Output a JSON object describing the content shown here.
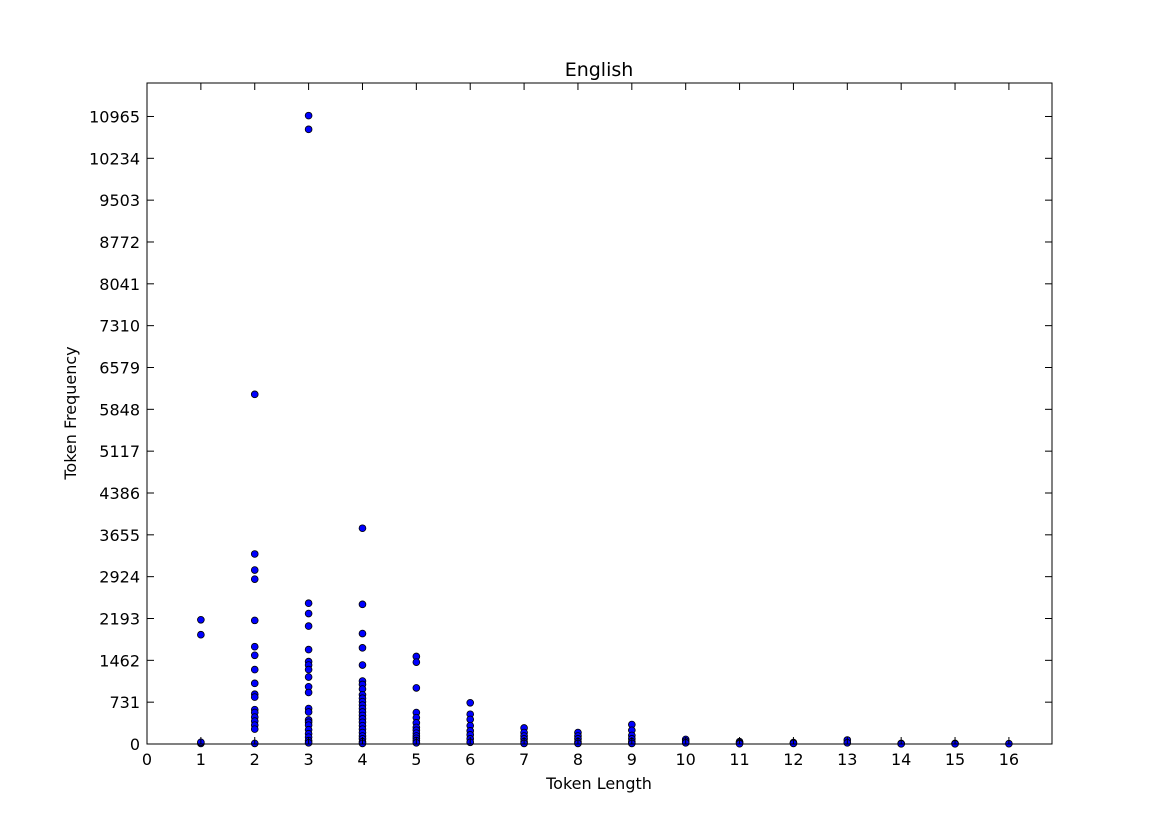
{
  "chart_data": {
    "type": "scatter",
    "title": "English",
    "xlabel": "Token Length",
    "ylabel": "Token Frequency",
    "xlim": [
      0,
      16.8
    ],
    "ylim": [
      0,
      11550
    ],
    "xticks": [
      "0",
      "1",
      "2",
      "3",
      "4",
      "5",
      "6",
      "7",
      "8",
      "9",
      "10",
      "11",
      "12",
      "13",
      "14",
      "15",
      "16"
    ],
    "yticks": [
      "0",
      "731",
      "1462",
      "2193",
      "2924",
      "3655",
      "4386",
      "5117",
      "5848",
      "6579",
      "7310",
      "8041",
      "8772",
      "9503",
      "10234",
      "10965"
    ],
    "marker_color": "#0000ff",
    "grid": false,
    "legend": "none",
    "series": [
      {
        "points": [
          [
            1,
            2170
          ],
          [
            1,
            1910
          ],
          [
            1,
            10
          ],
          [
            1,
            30
          ],
          [
            2,
            6110
          ],
          [
            2,
            3320
          ],
          [
            2,
            3040
          ],
          [
            2,
            2880
          ],
          [
            2,
            2160
          ],
          [
            2,
            1700
          ],
          [
            2,
            1550
          ],
          [
            2,
            1300
          ],
          [
            2,
            1060
          ],
          [
            2,
            870
          ],
          [
            2,
            820
          ],
          [
            2,
            600
          ],
          [
            2,
            550
          ],
          [
            2,
            470
          ],
          [
            2,
            400
          ],
          [
            2,
            330
          ],
          [
            2,
            260
          ],
          [
            2,
            10
          ],
          [
            3,
            10980
          ],
          [
            3,
            10740
          ],
          [
            3,
            2460
          ],
          [
            3,
            2280
          ],
          [
            3,
            2060
          ],
          [
            3,
            1650
          ],
          [
            3,
            1440
          ],
          [
            3,
            1380
          ],
          [
            3,
            1300
          ],
          [
            3,
            1170
          ],
          [
            3,
            1000
          ],
          [
            3,
            900
          ],
          [
            3,
            620
          ],
          [
            3,
            560
          ],
          [
            3,
            420
          ],
          [
            3,
            380
          ],
          [
            3,
            330
          ],
          [
            3,
            250
          ],
          [
            3,
            180
          ],
          [
            3,
            120
          ],
          [
            3,
            60
          ],
          [
            3,
            20
          ],
          [
            4,
            3770
          ],
          [
            4,
            2440
          ],
          [
            4,
            1930
          ],
          [
            4,
            1680
          ],
          [
            4,
            1380
          ],
          [
            4,
            1100
          ],
          [
            4,
            1040
          ],
          [
            4,
            960
          ],
          [
            4,
            860
          ],
          [
            4,
            800
          ],
          [
            4,
            740
          ],
          [
            4,
            680
          ],
          [
            4,
            620
          ],
          [
            4,
            560
          ],
          [
            4,
            500
          ],
          [
            4,
            440
          ],
          [
            4,
            380
          ],
          [
            4,
            320
          ],
          [
            4,
            260
          ],
          [
            4,
            200
          ],
          [
            4,
            140
          ],
          [
            4,
            90
          ],
          [
            4,
            40
          ],
          [
            4,
            10
          ],
          [
            5,
            1530
          ],
          [
            5,
            1430
          ],
          [
            5,
            980
          ],
          [
            5,
            550
          ],
          [
            5,
            460
          ],
          [
            5,
            370
          ],
          [
            5,
            290
          ],
          [
            5,
            240
          ],
          [
            5,
            190
          ],
          [
            5,
            140
          ],
          [
            5,
            100
          ],
          [
            5,
            60
          ],
          [
            5,
            20
          ],
          [
            6,
            720
          ],
          [
            6,
            520
          ],
          [
            6,
            430
          ],
          [
            6,
            320
          ],
          [
            6,
            230
          ],
          [
            6,
            160
          ],
          [
            6,
            90
          ],
          [
            6,
            30
          ],
          [
            7,
            280
          ],
          [
            7,
            200
          ],
          [
            7,
            140
          ],
          [
            7,
            90
          ],
          [
            7,
            40
          ],
          [
            7,
            10
          ],
          [
            8,
            200
          ],
          [
            8,
            140
          ],
          [
            8,
            90
          ],
          [
            8,
            40
          ],
          [
            8,
            10
          ],
          [
            9,
            340
          ],
          [
            9,
            240
          ],
          [
            9,
            150
          ],
          [
            9,
            90
          ],
          [
            9,
            40
          ],
          [
            9,
            10
          ],
          [
            10,
            80
          ],
          [
            10,
            50
          ],
          [
            10,
            20
          ],
          [
            11,
            40
          ],
          [
            11,
            20
          ],
          [
            11,
            5
          ],
          [
            12,
            25
          ],
          [
            12,
            10
          ],
          [
            13,
            70
          ],
          [
            13,
            20
          ],
          [
            14,
            10
          ],
          [
            14,
            3
          ],
          [
            15,
            10
          ],
          [
            15,
            3
          ],
          [
            16,
            5
          ]
        ]
      }
    ]
  }
}
